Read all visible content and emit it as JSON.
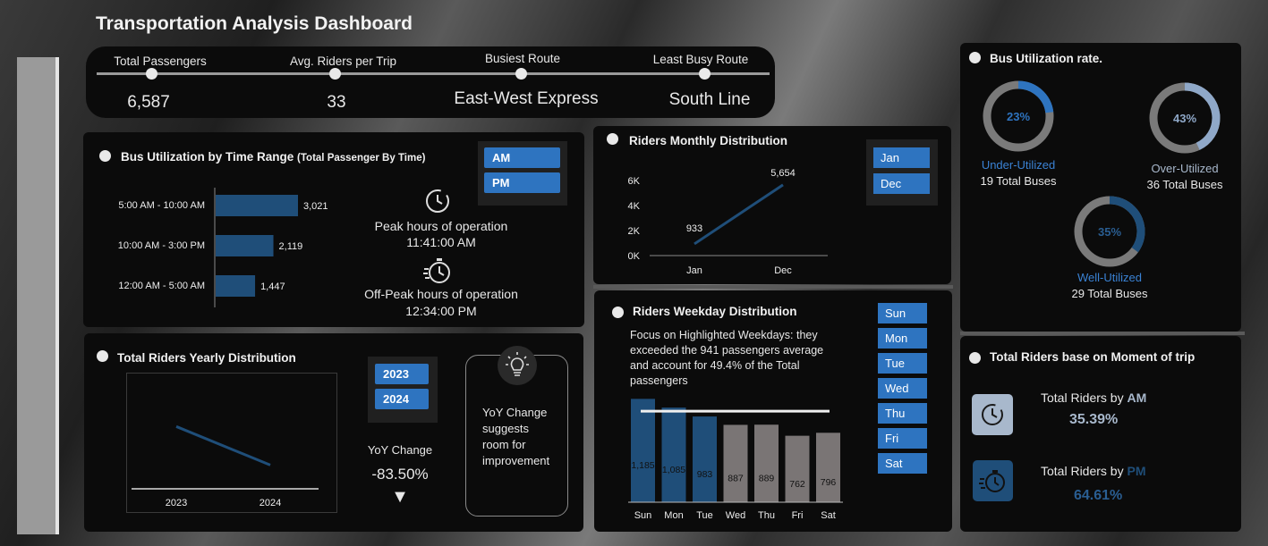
{
  "title": "Transportation Analysis Dashboard",
  "kpis": [
    {
      "label": "Total Passengers",
      "value": "6,587"
    },
    {
      "label": "Avg. Riders per Trip",
      "value": "33"
    },
    {
      "label": "Busiest Route",
      "value": "East-West Express"
    },
    {
      "label": "Least Busy Route",
      "value": "South Line"
    }
  ],
  "time_range": {
    "title": "Bus Utilization by Time Range",
    "subtitle": "(Total Passenger By Time)",
    "slicer": [
      "AM",
      "PM"
    ],
    "peak_label": "Peak hours of operation",
    "peak_value": "11:41:00 AM",
    "offpeak_label": "Off-Peak hours of operation",
    "offpeak_value": "12:34:00 PM"
  },
  "yearly": {
    "title": "Total Riders Yearly Distribution",
    "slicer": [
      "2023",
      "2024"
    ],
    "yoy_label": "YoY Change",
    "yoy_value": "-83.50%",
    "arrow": "▼",
    "insight": "YoY Change suggests room for improvement"
  },
  "monthly": {
    "title": "Riders Monthly Distribution",
    "slicer": [
      "Jan",
      "Dec"
    ]
  },
  "weekday": {
    "title": "Riders Weekday Distribution",
    "note": "Focus on Highlighted Weekdays: they exceeded the 941 passengers average and account for 49.4% of the Total passengers",
    "slicer": [
      "Sun",
      "Mon",
      "Tue",
      "Wed",
      "Thu",
      "Fri",
      "Sat"
    ]
  },
  "utilization": {
    "title": "Bus Utilization rate.",
    "items": [
      {
        "pct": "23%",
        "label": "Under-Utilized",
        "sub": "19 Total Buses",
        "color": "#2e74c0"
      },
      {
        "pct": "43%",
        "label": "Over-Utilized",
        "sub": "36 Total Buses",
        "color": "#8fa8c8"
      },
      {
        "pct": "35%",
        "label": "Well-Utilized",
        "sub": "29 Total Buses",
        "color": "#1f4e79"
      }
    ],
    "track_color": "#7a7a7a"
  },
  "moment": {
    "title": "Total Riders base on Moment of trip",
    "am_prefix": "Total Riders by ",
    "am_key": "AM",
    "am_value": "35.39%",
    "pm_prefix": "Total Riders by ",
    "pm_key": "PM",
    "pm_value": "64.61%"
  },
  "colors": {
    "accent": "#2e74c0",
    "dark_bar": "#1f4e79",
    "grey_bar": "#7a7575",
    "panel": "#0b0b0b"
  },
  "icons": [
    "clock-icon",
    "stopwatch-icon",
    "lightbulb-icon"
  ],
  "chart_data": [
    {
      "type": "bar",
      "orientation": "horizontal",
      "categories": [
        "5:00 AM - 10:00 AM",
        "10:00 AM - 3:00 PM",
        "12:00 AM - 5:00 AM"
      ],
      "values": [
        3021,
        2119,
        1447
      ],
      "labels": [
        "3,021",
        "2,119",
        "1,447"
      ]
    },
    {
      "type": "line",
      "x": [
        "2023",
        "2024"
      ],
      "values": [
        6.0,
        1.0
      ],
      "labels": []
    },
    {
      "type": "line",
      "x": [
        "Jan",
        "Dec"
      ],
      "values": [
        933,
        5654
      ],
      "labels": [
        "933",
        "5,654"
      ],
      "yticks": [
        "0K",
        "2K",
        "4K",
        "6K"
      ],
      "ylim": [
        0,
        6000
      ]
    },
    {
      "type": "bar",
      "categories": [
        "Sun",
        "Mon",
        "Tue",
        "Wed",
        "Thu",
        "Fri",
        "Sat"
      ],
      "values": [
        1185,
        1085,
        983,
        887,
        889,
        762,
        796
      ],
      "labels": [
        "1,185",
        "1,085",
        "983",
        "887",
        "889",
        "762",
        "796"
      ],
      "highlighted": [
        true,
        true,
        true,
        false,
        false,
        false,
        false
      ],
      "average": 941
    },
    {
      "type": "pie",
      "series": [
        {
          "name": "Under-Utilized",
          "values": [
            23
          ]
        },
        {
          "name": "Over-Utilized",
          "values": [
            43
          ]
        },
        {
          "name": "Well-Utilized",
          "values": [
            35
          ]
        }
      ]
    }
  ]
}
